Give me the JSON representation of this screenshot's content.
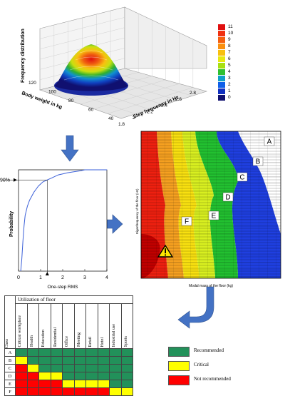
{
  "surface3d": {
    "zlabel": "Frequency distribution",
    "xlabel": "Step frequency in Hz",
    "ylabel": "Body weight in kg",
    "xticks": [
      "1.8",
      "2",
      "2.2",
      "2.4",
      "2.6",
      "2.8"
    ],
    "yticks": [
      "40",
      "60",
      "80",
      "100",
      "120"
    ]
  },
  "legend": {
    "labels": [
      "11",
      "10",
      "9",
      "8",
      "7",
      "6",
      "5",
      "4",
      "3",
      "2",
      "1",
      "0"
    ],
    "colors": [
      "#e01010",
      "#f03010",
      "#f56010",
      "#fa9010",
      "#f8c010",
      "#e8e810",
      "#a8e010",
      "#30c030",
      "#10a0c8",
      "#1060e8",
      "#1030c0",
      "#101070"
    ]
  },
  "cdf_chart": {
    "type": "line",
    "xlabel": "One-step RMS",
    "ylabel": "Probability",
    "xlim": [
      0,
      4
    ],
    "ylim": [
      0,
      1
    ],
    "xticks": [
      "0",
      "1",
      "2",
      "3",
      "4"
    ],
    "percent_label": "90%",
    "threshold_x": 1.3,
    "threshold_y": 0.9,
    "x": [
      0.1,
      0.15,
      0.2,
      0.25,
      0.3,
      0.4,
      0.5,
      0.6,
      0.7,
      0.8,
      0.9,
      1.0,
      1.1,
      1.2,
      1.3,
      1.5,
      1.8,
      2.0,
      2.2,
      2.5,
      2.8,
      3.0,
      3.5,
      4.0
    ],
    "y": [
      0.0,
      0.12,
      0.3,
      0.45,
      0.55,
      0.64,
      0.7,
      0.74,
      0.78,
      0.81,
      0.84,
      0.86,
      0.88,
      0.89,
      0.9,
      0.92,
      0.95,
      0.96,
      0.97,
      0.98,
      0.99,
      1.0,
      1.0,
      1.0
    ]
  },
  "contour": {
    "xlabel": "Modal mass of the floor (kg)",
    "ylabel": "Eigenfrequency of the floor (Hz)",
    "class_labels": [
      "A",
      "B",
      "C",
      "D",
      "E",
      "F"
    ],
    "warning_icon": "warning-triangle-icon"
  },
  "table": {
    "header": "Utilization of floor",
    "class_header": "Class",
    "columns": [
      "Critical workplace",
      "Health",
      "Education",
      "Residential",
      "Office",
      "Meeting",
      "Retail",
      "Hotel",
      "Industrial use",
      "Sports"
    ],
    "rows": [
      {
        "class": "A",
        "cells": [
          "g",
          "g",
          "g",
          "g",
          "g",
          "g",
          "g",
          "g",
          "g",
          "g"
        ]
      },
      {
        "class": "B",
        "cells": [
          "y",
          "g",
          "g",
          "g",
          "g",
          "g",
          "g",
          "g",
          "g",
          "g"
        ]
      },
      {
        "class": "C",
        "cells": [
          "r",
          "y",
          "g",
          "g",
          "g",
          "g",
          "g",
          "g",
          "g",
          "g"
        ]
      },
      {
        "class": "D",
        "cells": [
          "r",
          "r",
          "y",
          "y",
          "g",
          "g",
          "g",
          "g",
          "g",
          "g"
        ]
      },
      {
        "class": "E",
        "cells": [
          "r",
          "r",
          "r",
          "r",
          "y",
          "y",
          "y",
          "y",
          "g",
          "g"
        ]
      },
      {
        "class": "F",
        "cells": [
          "r",
          "r",
          "r",
          "r",
          "r",
          "r",
          "r",
          "r",
          "y",
          "y"
        ]
      }
    ],
    "colors": {
      "g": "#22915a",
      "y": "#ffff00",
      "r": "#ff0000"
    }
  },
  "table_legend": [
    {
      "label": "Recommended",
      "color": "#22915a"
    },
    {
      "label": "Critical",
      "color": "#ffff00"
    },
    {
      "label": "Not recommended",
      "color": "#ff0000"
    }
  ]
}
